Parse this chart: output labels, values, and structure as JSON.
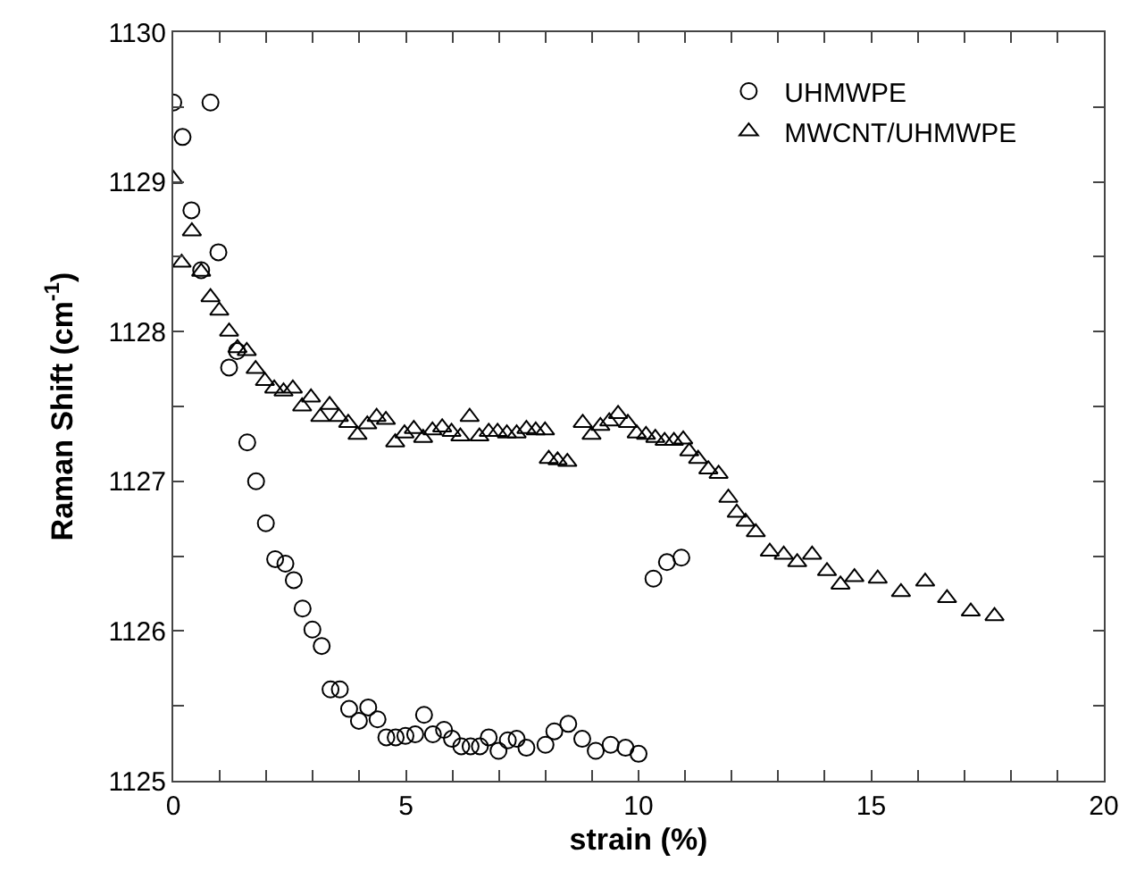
{
  "chart_data": {
    "type": "scatter",
    "xlabel": "strain (%)",
    "ylabel": "Raman Shift (cm$^{-1}$)",
    "xlim": [
      0,
      20
    ],
    "ylim": [
      1125,
      1130
    ],
    "xticks": [
      0,
      {
        "value": 1,
        "label": null
      },
      {
        "value": 2,
        "label": null
      },
      {
        "value": 3,
        "label": null
      },
      {
        "value": 4,
        "label": null
      },
      5,
      {
        "value": 6,
        "label": null
      },
      {
        "value": 7,
        "label": null
      },
      {
        "value": 8,
        "label": null
      },
      {
        "value": 9,
        "label": null
      },
      10,
      {
        "value": 11,
        "label": null
      },
      {
        "value": 12,
        "label": null
      },
      {
        "value": 13,
        "label": null
      },
      {
        "value": 14,
        "label": null
      },
      15,
      {
        "value": 16,
        "label": null
      },
      {
        "value": 17,
        "label": null
      },
      {
        "value": 18,
        "label": null
      },
      {
        "value": 19,
        "label": null
      },
      20
    ],
    "yticks": [
      1125,
      {
        "value": 1125.5,
        "label": null
      },
      1126,
      {
        "value": 1126.5,
        "label": null
      },
      1127,
      {
        "value": 1127.5,
        "label": null
      },
      1128,
      {
        "value": 1128.5,
        "label": null
      },
      1129,
      {
        "value": 1129.5,
        "label": null
      },
      1130
    ],
    "legend": "top right",
    "series": [
      {
        "name": "UHMWPE",
        "color": "#000000",
        "marker": "circle",
        "x": [
          0,
          0.2,
          0.39,
          0.6,
          0.8,
          0.97,
          1.2,
          1.37,
          1.59,
          1.78,
          1.99,
          2.19,
          2.41,
          2.59,
          2.78,
          2.99,
          3.19,
          3.38,
          3.58,
          3.78,
          3.99,
          4.19,
          4.39,
          4.58,
          4.78,
          4.99,
          5.2,
          5.39,
          5.58,
          5.82,
          5.99,
          6.19,
          6.39,
          6.59,
          6.78,
          6.99,
          7.19,
          7.38,
          7.59,
          8.0,
          8.19,
          8.49,
          8.79,
          9.08,
          9.4,
          9.72,
          10.0,
          10.32,
          10.61,
          10.92
        ],
        "values": [
          1129.53,
          1129.3,
          1128.81,
          1128.41,
          1129.53,
          1128.53,
          1127.76,
          1127.87,
          1127.26,
          1127.0,
          1126.72,
          1126.48,
          1126.45,
          1126.34,
          1126.15,
          1126.01,
          1125.9,
          1125.61,
          1125.61,
          1125.48,
          1125.4,
          1125.49,
          1125.41,
          1125.29,
          1125.29,
          1125.3,
          1125.31,
          1125.44,
          1125.31,
          1125.34,
          1125.28,
          1125.23,
          1125.23,
          1125.23,
          1125.29,
          1125.2,
          1125.27,
          1125.28,
          1125.22,
          1125.24,
          1125.33,
          1125.38,
          1125.28,
          1125.2,
          1125.24,
          1125.22,
          1125.18,
          1126.35,
          1126.46,
          1126.49
        ]
      },
      {
        "name": "MWCNT/UHMWPE",
        "color": "#000000",
        "marker": "triangle",
        "x": [
          0,
          0.18,
          0.4,
          0.6,
          0.8,
          0.99,
          1.2,
          1.38,
          1.58,
          1.77,
          1.97,
          2.17,
          2.37,
          2.57,
          2.77,
          2.96,
          3.16,
          3.36,
          3.56,
          3.76,
          3.96,
          4.17,
          4.37,
          4.57,
          4.77,
          4.97,
          5.17,
          5.37,
          5.57,
          5.78,
          5.98,
          6.17,
          6.37,
          6.58,
          6.78,
          6.97,
          7.17,
          7.38,
          7.59,
          7.79,
          7.99,
          8.07,
          8.26,
          8.47,
          8.8,
          8.99,
          9.18,
          9.37,
          9.56,
          9.77,
          9.96,
          10.16,
          10.36,
          10.56,
          10.76,
          10.96,
          11.09,
          11.28,
          11.5,
          11.72,
          11.93,
          12.11,
          12.3,
          12.52,
          12.82,
          13.12,
          13.41,
          13.73,
          14.05,
          14.34,
          14.64,
          15.14,
          15.64,
          16.16,
          16.63,
          17.14,
          17.65
        ],
        "values": [
          1129.02,
          1128.46,
          1128.67,
          1128.4,
          1128.23,
          1128.14,
          1128.0,
          1127.89,
          1127.87,
          1127.75,
          1127.67,
          1127.62,
          1127.6,
          1127.62,
          1127.5,
          1127.56,
          1127.43,
          1127.51,
          1127.43,
          1127.39,
          1127.31,
          1127.38,
          1127.43,
          1127.41,
          1127.26,
          1127.32,
          1127.35,
          1127.29,
          1127.34,
          1127.36,
          1127.33,
          1127.3,
          1127.43,
          1127.3,
          1127.33,
          1127.33,
          1127.32,
          1127.32,
          1127.35,
          1127.34,
          1127.34,
          1127.15,
          1127.14,
          1127.13,
          1127.39,
          1127.31,
          1127.37,
          1127.4,
          1127.45,
          1127.39,
          1127.32,
          1127.31,
          1127.29,
          1127.27,
          1127.27,
          1127.28,
          1127.2,
          1127.15,
          1127.08,
          1127.05,
          1126.89,
          1126.79,
          1126.73,
          1126.66,
          1126.53,
          1126.51,
          1126.46,
          1126.51,
          1126.4,
          1126.31,
          1126.36,
          1126.35,
          1126.26,
          1126.33,
          1126.22,
          1126.13,
          1126.1
        ]
      }
    ]
  }
}
